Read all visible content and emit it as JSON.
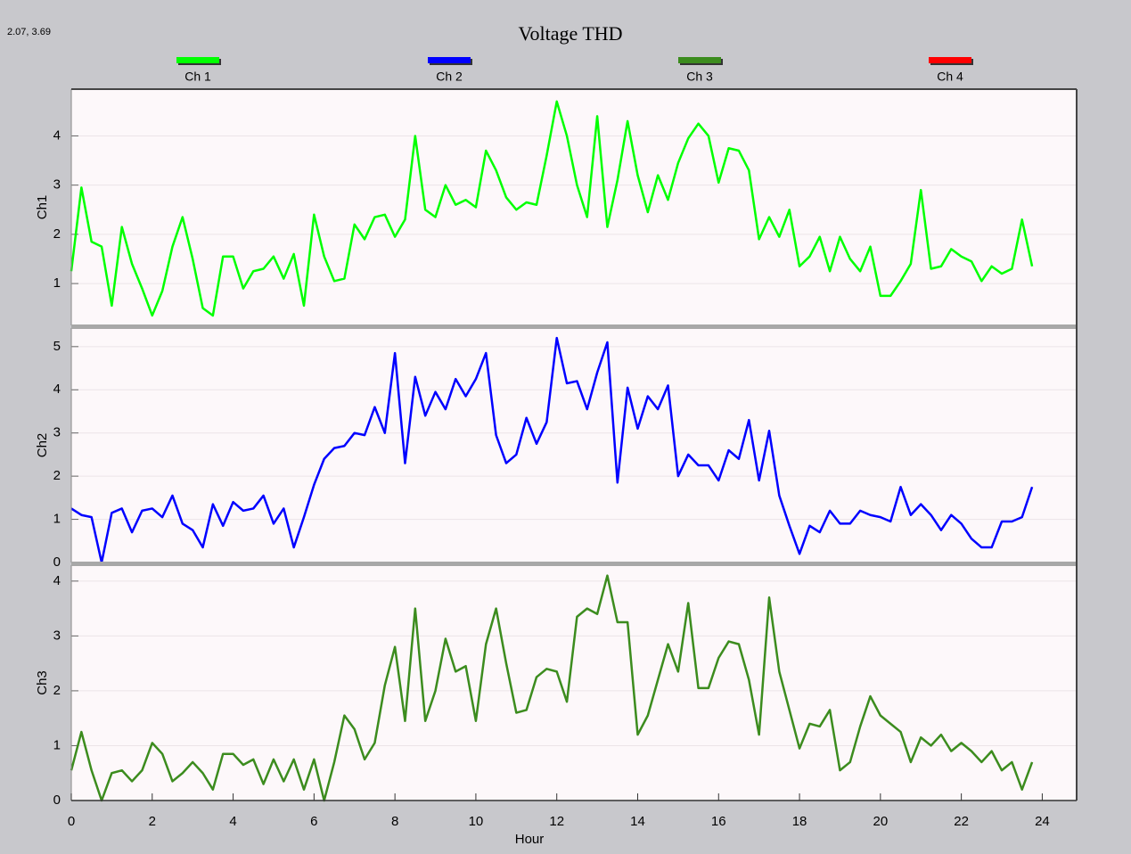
{
  "title": "Voltage THD",
  "readout": "2.07, 3.69",
  "legend": [
    {
      "name": "Ch 1",
      "color": "#00ff00"
    },
    {
      "name": "Ch 2",
      "color": "#0000ff"
    },
    {
      "name": "Ch 3",
      "color": "#3c8c1e"
    },
    {
      "name": "Ch 4",
      "color": "#ff0000"
    }
  ],
  "chart_data": [
    {
      "type": "line",
      "ylabel": "Ch1",
      "xlim": [
        0,
        24.85
      ],
      "ylim": [
        0.15,
        4.95
      ],
      "yticks": [
        1,
        2,
        3,
        4
      ],
      "x": [
        0,
        0.25,
        0.5,
        0.75,
        1,
        1.25,
        1.5,
        1.75,
        2,
        2.25,
        2.5,
        2.75,
        3,
        3.25,
        3.5,
        3.75,
        4,
        4.25,
        4.5,
        4.75,
        5,
        5.25,
        5.5,
        5.75,
        6,
        6.25,
        6.5,
        6.75,
        7,
        7.25,
        7.5,
        7.75,
        8,
        8.25,
        8.5,
        8.75,
        9,
        9.25,
        9.5,
        9.75,
        10,
        10.25,
        10.5,
        10.75,
        11,
        11.25,
        11.5,
        11.75,
        12,
        12.25,
        12.5,
        12.75,
        13,
        13.25,
        13.5,
        13.75,
        14,
        14.25,
        14.5,
        14.75,
        15,
        15.25,
        15.5,
        15.75,
        16,
        16.25,
        16.5,
        16.75,
        17,
        17.25,
        17.5,
        17.75,
        18,
        18.25,
        18.5,
        18.75,
        19,
        19.25,
        19.5,
        19.75,
        20,
        20.25,
        20.5,
        20.75,
        21,
        21.25,
        21.5,
        21.75,
        22,
        22.25,
        22.5,
        22.75,
        23,
        23.25,
        23.5,
        23.75
      ],
      "series": [
        {
          "color": "#00ff00",
          "values": [
            1.25,
            2.95,
            1.85,
            1.75,
            0.55,
            2.15,
            1.4,
            0.9,
            0.35,
            0.85,
            1.75,
            2.35,
            1.5,
            0.5,
            0.35,
            1.55,
            1.55,
            0.9,
            1.25,
            1.3,
            1.55,
            1.1,
            1.6,
            0.55,
            2.4,
            1.55,
            1.05,
            1.1,
            2.2,
            1.9,
            2.35,
            2.4,
            1.95,
            2.3,
            4.0,
            2.5,
            2.35,
            3.0,
            2.6,
            2.7,
            2.55,
            3.7,
            3.3,
            2.75,
            2.5,
            2.65,
            2.6,
            3.6,
            4.7,
            4.0,
            3.0,
            2.35,
            4.4,
            2.15,
            3.1,
            4.3,
            3.2,
            2.45,
            3.2,
            2.7,
            3.45,
            3.95,
            4.25,
            4.0,
            3.05,
            3.75,
            3.7,
            3.3,
            1.9,
            2.35,
            1.95,
            2.5,
            1.35,
            1.55,
            1.95,
            1.25,
            1.95,
            1.5,
            1.25,
            1.75,
            0.75,
            0.75,
            1.05,
            1.4,
            2.9,
            1.3,
            1.35,
            1.7,
            1.55,
            1.45,
            1.05,
            1.35,
            1.2,
            1.3,
            2.3,
            1.35
          ]
        }
      ]
    },
    {
      "type": "line",
      "ylabel": "Ch2",
      "xlim": [
        0,
        24.85
      ],
      "ylim": [
        0,
        5.43
      ],
      "yticks": [
        0,
        1,
        2,
        3,
        4,
        5
      ],
      "x": [
        0,
        0.25,
        0.5,
        0.75,
        1,
        1.25,
        1.5,
        1.75,
        2,
        2.25,
        2.5,
        2.75,
        3,
        3.25,
        3.5,
        3.75,
        4,
        4.25,
        4.5,
        4.75,
        5,
        5.25,
        5.5,
        5.75,
        6,
        6.25,
        6.5,
        6.75,
        7,
        7.25,
        7.5,
        7.75,
        8,
        8.25,
        8.5,
        8.75,
        9,
        9.25,
        9.5,
        9.75,
        10,
        10.25,
        10.5,
        10.75,
        11,
        11.25,
        11.5,
        11.75,
        12,
        12.25,
        12.5,
        12.75,
        13,
        13.25,
        13.5,
        13.75,
        14,
        14.25,
        14.5,
        14.75,
        15,
        15.25,
        15.5,
        15.75,
        16,
        16.25,
        16.5,
        16.75,
        17,
        17.25,
        17.5,
        17.75,
        18,
        18.25,
        18.5,
        18.75,
        19,
        19.25,
        19.5,
        19.75,
        20,
        20.25,
        20.5,
        20.75,
        21,
        21.25,
        21.5,
        21.75,
        22,
        22.25,
        22.5,
        22.75,
        23,
        23.25,
        23.5,
        23.75
      ],
      "series": [
        {
          "color": "#0000ff",
          "values": [
            1.25,
            1.1,
            1.05,
            0.0,
            1.15,
            1.25,
            0.7,
            1.2,
            1.25,
            1.05,
            1.55,
            0.9,
            0.75,
            0.35,
            1.35,
            0.85,
            1.4,
            1.2,
            1.25,
            1.55,
            0.9,
            1.25,
            0.35,
            1.05,
            1.8,
            2.4,
            2.65,
            2.7,
            3.0,
            2.95,
            3.6,
            3.0,
            4.85,
            2.3,
            4.3,
            3.4,
            3.95,
            3.55,
            4.25,
            3.85,
            4.25,
            4.85,
            2.95,
            2.3,
            2.5,
            3.35,
            2.75,
            3.25,
            5.2,
            4.15,
            4.2,
            3.55,
            4.4,
            5.1,
            1.85,
            4.05,
            3.1,
            3.85,
            3.55,
            4.1,
            2.0,
            2.5,
            2.25,
            2.25,
            1.9,
            2.6,
            2.4,
            3.3,
            1.9,
            3.05,
            1.55,
            0.85,
            0.2,
            0.85,
            0.7,
            1.2,
            0.9,
            0.9,
            1.2,
            1.1,
            1.05,
            0.95,
            1.75,
            1.1,
            1.35,
            1.1,
            0.75,
            1.1,
            0.9,
            0.55,
            0.35,
            0.35,
            0.95,
            0.95,
            1.05,
            1.75
          ]
        }
      ]
    },
    {
      "type": "line",
      "ylabel": "Ch3",
      "xlabel": "Hour",
      "xlim": [
        0,
        24.85
      ],
      "xticks": [
        0,
        2,
        4,
        6,
        8,
        10,
        12,
        14,
        16,
        18,
        20,
        22,
        24
      ],
      "ylim": [
        0,
        4.29
      ],
      "yticks": [
        0,
        1,
        2,
        3,
        4
      ],
      "x": [
        0,
        0.25,
        0.5,
        0.75,
        1,
        1.25,
        1.5,
        1.75,
        2,
        2.25,
        2.5,
        2.75,
        3,
        3.25,
        3.5,
        3.75,
        4,
        4.25,
        4.5,
        4.75,
        5,
        5.25,
        5.5,
        5.75,
        6,
        6.25,
        6.5,
        6.75,
        7,
        7.25,
        7.5,
        7.75,
        8,
        8.25,
        8.5,
        8.75,
        9,
        9.25,
        9.5,
        9.75,
        10,
        10.25,
        10.5,
        10.75,
        11,
        11.25,
        11.5,
        11.75,
        12,
        12.25,
        12.5,
        12.75,
        13,
        13.25,
        13.5,
        13.75,
        14,
        14.25,
        14.5,
        14.75,
        15,
        15.25,
        15.5,
        15.75,
        16,
        16.25,
        16.5,
        16.75,
        17,
        17.25,
        17.5,
        17.75,
        18,
        18.25,
        18.5,
        18.75,
        19,
        19.25,
        19.5,
        19.75,
        20,
        20.25,
        20.5,
        20.75,
        21,
        21.25,
        21.5,
        21.75,
        22,
        22.25,
        22.5,
        22.75,
        23,
        23.25,
        23.5,
        23.75
      ],
      "series": [
        {
          "color": "#3c8c1e",
          "values": [
            0.55,
            1.25,
            0.55,
            0.0,
            0.5,
            0.55,
            0.35,
            0.55,
            1.05,
            0.85,
            0.35,
            0.5,
            0.7,
            0.5,
            0.2,
            0.85,
            0.85,
            0.65,
            0.75,
            0.3,
            0.75,
            0.35,
            0.75,
            0.2,
            0.75,
            0.0,
            0.7,
            1.55,
            1.3,
            0.75,
            1.05,
            2.1,
            2.8,
            1.45,
            3.5,
            1.45,
            2.0,
            2.95,
            2.35,
            2.45,
            1.45,
            2.85,
            3.5,
            2.5,
            1.6,
            1.65,
            2.25,
            2.4,
            2.35,
            1.8,
            3.35,
            3.5,
            3.4,
            4.1,
            3.25,
            3.25,
            1.2,
            1.55,
            2.2,
            2.85,
            2.35,
            3.6,
            2.05,
            2.05,
            2.6,
            2.9,
            2.85,
            2.2,
            1.2,
            3.7,
            2.35,
            1.65,
            0.95,
            1.4,
            1.35,
            1.65,
            0.55,
            0.7,
            1.35,
            1.9,
            1.55,
            1.4,
            1.25,
            0.7,
            1.15,
            1.0,
            1.2,
            0.9,
            1.05,
            0.9,
            0.7,
            0.9,
            0.55,
            0.7,
            0.2,
            0.7
          ]
        }
      ]
    }
  ]
}
